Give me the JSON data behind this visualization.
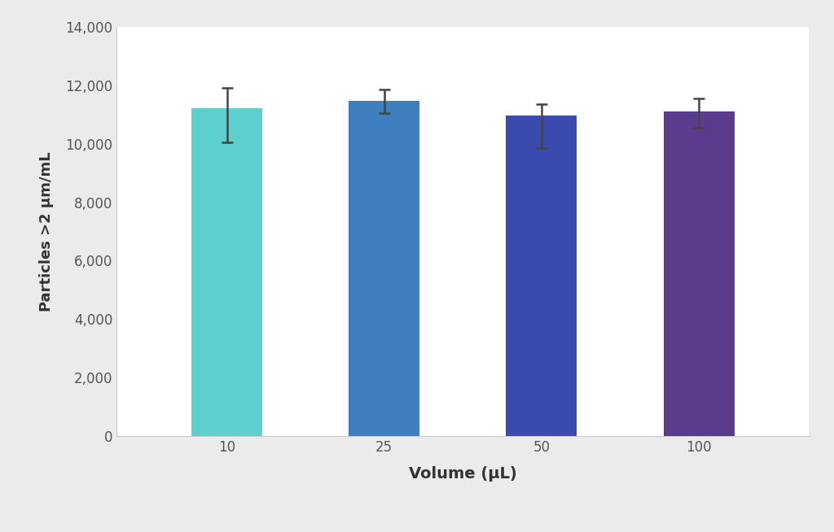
{
  "categories": [
    "10",
    "25",
    "50",
    "100"
  ],
  "values": [
    11200,
    11450,
    10950,
    11100
  ],
  "errors_low": [
    1150,
    400,
    1100,
    550
  ],
  "errors_high": [
    700,
    400,
    400,
    450
  ],
  "bar_colors": [
    "#5ECFCF",
    "#3D7FBF",
    "#3A4BAD",
    "#5B3B8C"
  ],
  "xlabel": "Volume (μL)",
  "ylabel": "Particles >2 μm/mL",
  "ylim": [
    0,
    14000
  ],
  "yticks": [
    0,
    2000,
    4000,
    6000,
    8000,
    10000,
    12000,
    14000
  ],
  "background_color": "#EBEBEB",
  "plot_background": "#FFFFFF",
  "xlabel_fontsize": 14,
  "ylabel_fontsize": 13,
  "tick_fontsize": 12,
  "error_color": "#444444",
  "error_linewidth": 1.8,
  "error_capsize": 5,
  "bar_width": 0.45
}
